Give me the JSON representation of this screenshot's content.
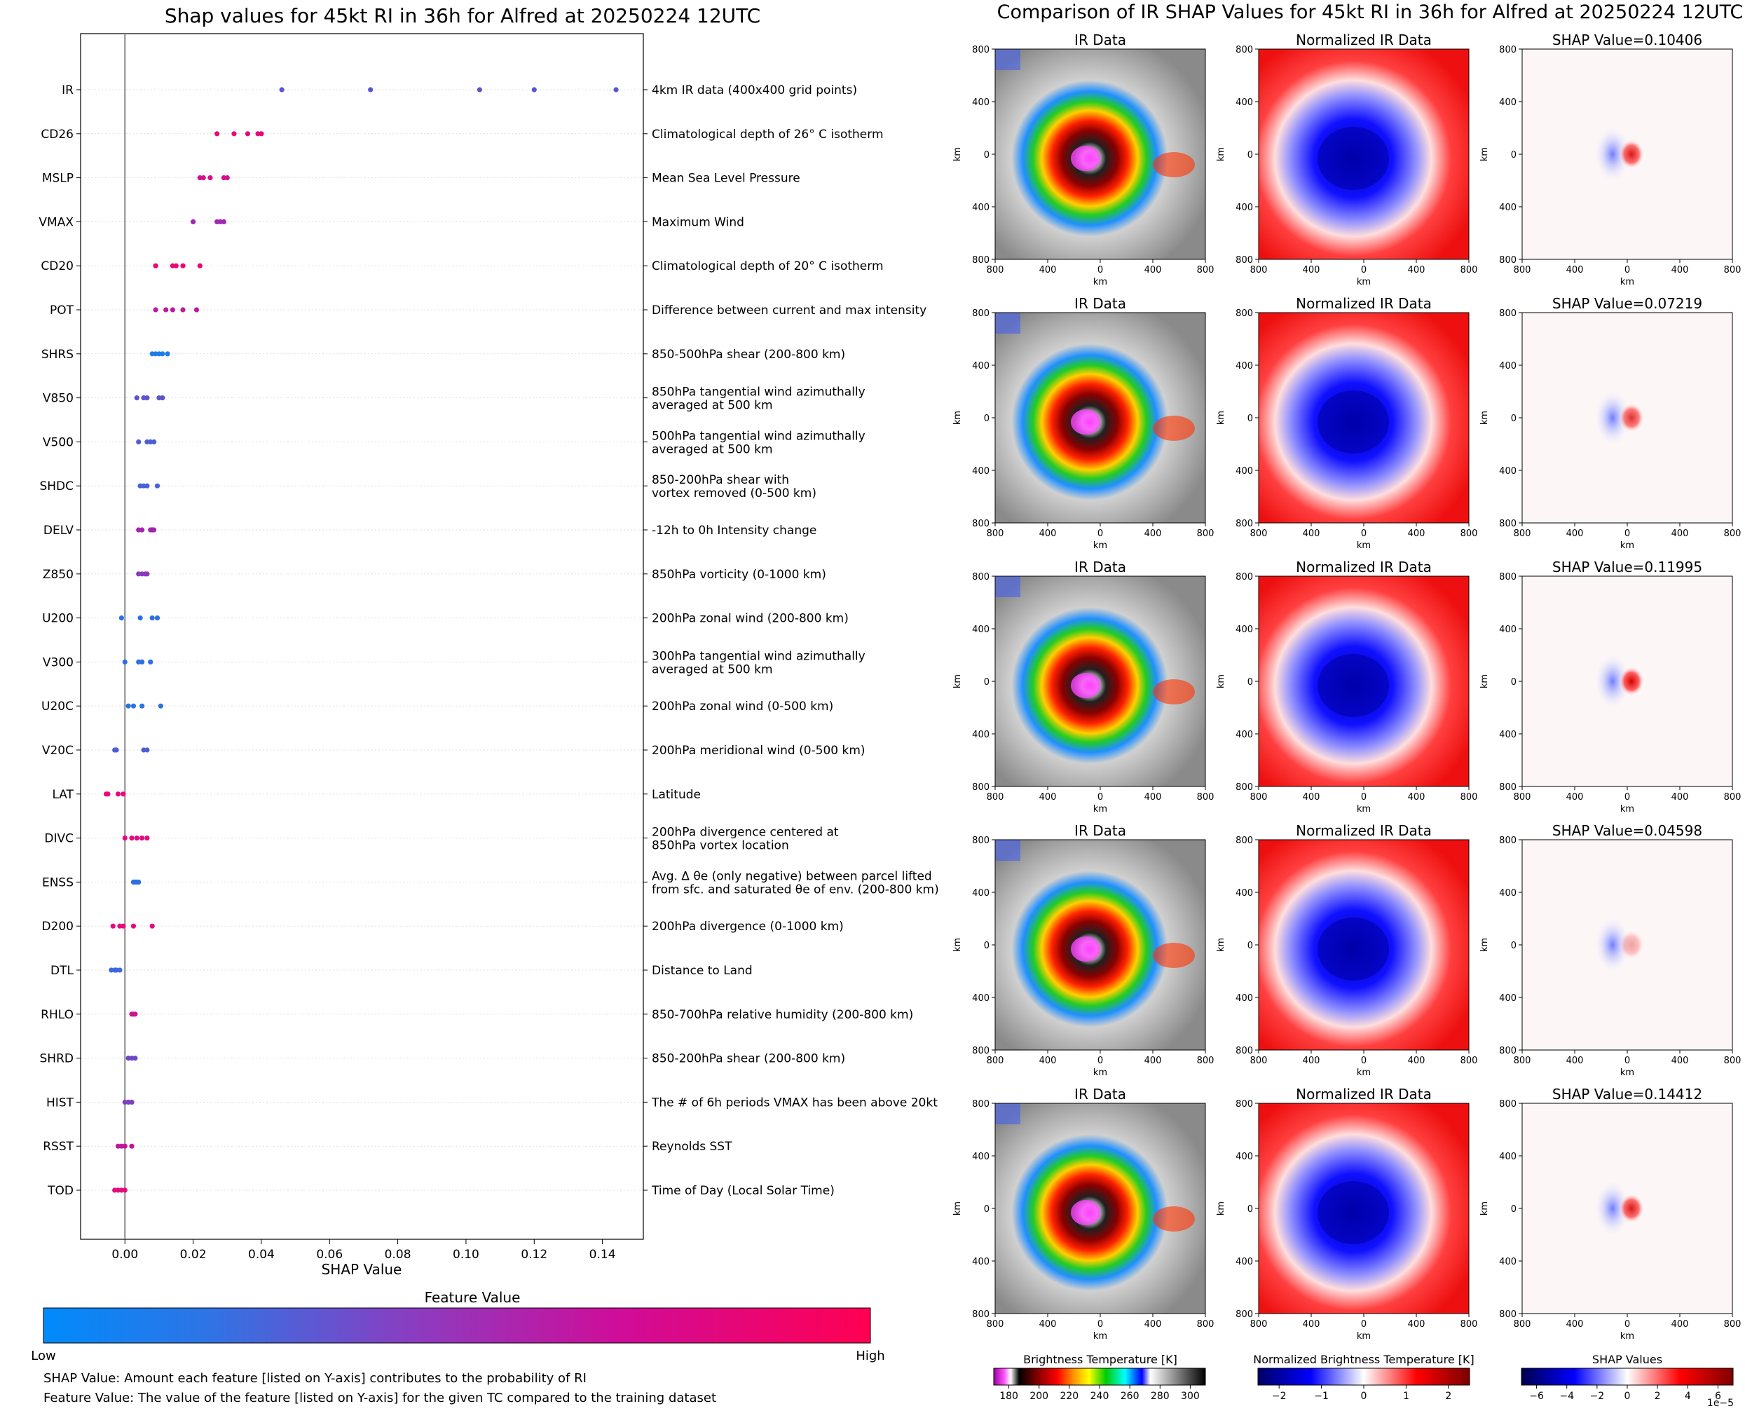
{
  "left": {
    "title": "Shap values for 45kt RI in 36h for Alfred at 20250224 12UTC",
    "xlabel": "SHAP Value",
    "xlim": [
      -0.013,
      0.152
    ],
    "xticks": [
      0.0,
      0.02,
      0.04,
      0.06,
      0.08,
      0.1,
      0.12,
      0.14
    ],
    "xtick_labels": [
      "0.00",
      "0.02",
      "0.04",
      "0.06",
      "0.08",
      "0.10",
      "0.12",
      "0.14"
    ],
    "colorbar_title": "Feature Value",
    "colorbar_low": "Low",
    "colorbar_high": "High",
    "note1": "SHAP Value: Amount each feature [listed on Y-axis] contributes to the probability of RI",
    "note2": "Feature Value: The value of the feature [listed on Y-axis] for the given TC compared to the training dataset"
  },
  "chart_data": {
    "type": "scatter",
    "title": "Shap values for 45kt RI in 36h for Alfred at 20250224 12UTC",
    "xlabel": "SHAP Value",
    "features": [
      {
        "name": "IR",
        "desc": [
          "4km IR data (400x400 grid points)"
        ],
        "color": "#5a55cc",
        "values": [
          0.046,
          0.072,
          0.104,
          0.12,
          0.144
        ]
      },
      {
        "name": "CD26",
        "desc": [
          "Climatological depth of 26° C isotherm"
        ],
        "color": "#e5097a",
        "values": [
          0.027,
          0.032,
          0.036,
          0.039,
          0.04
        ]
      },
      {
        "name": "MSLP",
        "desc": [
          "Mean Sea Level Pressure"
        ],
        "color": "#d4108e",
        "values": [
          0.022,
          0.023,
          0.025,
          0.029,
          0.03
        ]
      },
      {
        "name": "VMAX",
        "desc": [
          "Maximum Wind"
        ],
        "color": "#a028b0",
        "values": [
          0.02,
          0.027,
          0.028,
          0.029
        ]
      },
      {
        "name": "CD20",
        "desc": [
          "Climatological depth of 20° C isotherm"
        ],
        "color": "#ec0670",
        "values": [
          0.009,
          0.014,
          0.015,
          0.017,
          0.022
        ]
      },
      {
        "name": "POT",
        "desc": [
          "Difference between current and max intensity"
        ],
        "color": "#bb1a9e",
        "values": [
          0.009,
          0.012,
          0.014,
          0.017,
          0.021
        ]
      },
      {
        "name": "SHRS",
        "desc": [
          "850-500hPa shear (200-800 km)"
        ],
        "color": "#1e7ee6",
        "values": [
          0.008,
          0.009,
          0.01,
          0.011,
          0.0125
        ]
      },
      {
        "name": "V850",
        "desc": [
          "850hPa tangential wind azimuthally",
          "averaged at 500 km"
        ],
        "color": "#5c52cc",
        "values": [
          0.0035,
          0.0055,
          0.0065,
          0.01,
          0.011
        ]
      },
      {
        "name": "V500",
        "desc": [
          "500hPa tangential wind azimuthally",
          "averaged at 500 km"
        ],
        "color": "#4d5ed4",
        "values": [
          0.004,
          0.0065,
          0.0075,
          0.0085
        ]
      },
      {
        "name": "SHDC",
        "desc": [
          "850-200hPa shear with",
          "vortex removed (0-500 km)"
        ],
        "color": "#4a60d6",
        "values": [
          0.0045,
          0.0055,
          0.0065,
          0.0095
        ]
      },
      {
        "name": "DELV",
        "desc": [
          "-12h to 0h Intensity change"
        ],
        "color": "#a423ae",
        "values": [
          0.004,
          0.005,
          0.0075,
          0.008,
          0.0085
        ]
      },
      {
        "name": "Z850",
        "desc": [
          "850hPa vorticity (0-1000 km)"
        ],
        "color": "#8a38be",
        "values": [
          0.004,
          0.005,
          0.006,
          0.0065
        ]
      },
      {
        "name": "U200",
        "desc": [
          "200hPa zonal wind (200-800 km)"
        ],
        "color": "#2c70e0",
        "values": [
          -0.001,
          0.0045,
          0.008,
          0.0095
        ]
      },
      {
        "name": "V300",
        "desc": [
          "300hPa tangential wind azimuthally",
          "averaged at 500 km"
        ],
        "color": "#2f6fdf",
        "values": [
          0.0,
          0.004,
          0.005,
          0.0075
        ]
      },
      {
        "name": "U20C",
        "desc": [
          "200hPa zonal wind (0-500 km)"
        ],
        "color": "#2d72e0",
        "values": [
          0.001,
          0.0025,
          0.005,
          0.0105
        ]
      },
      {
        "name": "V20C",
        "desc": [
          "200hPa meridional wind (0-500 km)"
        ],
        "color": "#4d5ed4",
        "values": [
          -0.003,
          -0.0025,
          0.0055,
          0.0065
        ]
      },
      {
        "name": "LAT",
        "desc": [
          "Latitude"
        ],
        "color": "#e6097e",
        "values": [
          -0.0055,
          -0.005,
          -0.002,
          -0.0005
        ]
      },
      {
        "name": "DIVC",
        "desc": [
          "200hPa divergence centered at",
          "850hPa vortex location"
        ],
        "color": "#e40a80",
        "values": [
          0.0,
          0.002,
          0.0035,
          0.005,
          0.0065
        ]
      },
      {
        "name": "ENSS",
        "desc": [
          "Avg. Δ θe (only negative) between parcel lifted",
          "from sfc. and saturated θe of env. (200-800 km)"
        ],
        "color": "#2d71e0",
        "values": [
          0.0025,
          0.003,
          0.0035,
          0.004
        ]
      },
      {
        "name": "D200",
        "desc": [
          "200hPa divergence (0-1000 km)"
        ],
        "color": "#e60a7e",
        "values": [
          -0.0035,
          -0.0015,
          -0.0005,
          0.0025,
          0.008
        ]
      },
      {
        "name": "DTL",
        "desc": [
          "Distance to Land"
        ],
        "color": "#3b68da",
        "values": [
          -0.004,
          -0.003,
          -0.0025,
          -0.0015
        ]
      },
      {
        "name": "RHLO",
        "desc": [
          "850-700hPa relative humidity (200-800 km)"
        ],
        "color": "#cc128f",
        "values": [
          0.002,
          0.0025,
          0.003
        ]
      },
      {
        "name": "SHRD",
        "desc": [
          "850-200hPa shear (200-800 km)"
        ],
        "color": "#6e48c4",
        "values": [
          0.001,
          0.002,
          0.003
        ]
      },
      {
        "name": "HIST",
        "desc": [
          "The # of 6h periods VMAX has been above 20kt"
        ],
        "color": "#7a42c0",
        "values": [
          0.0,
          0.001,
          0.002
        ]
      },
      {
        "name": "RSST",
        "desc": [
          "Reynolds SST"
        ],
        "color": "#c0169a",
        "values": [
          -0.002,
          -0.001,
          0.0,
          0.002
        ]
      },
      {
        "name": "TOD",
        "desc": [
          "Time of Day (Local Solar Time)"
        ],
        "color": "#e80a7a",
        "values": [
          -0.003,
          -0.002,
          -0.001,
          0.0
        ]
      }
    ]
  },
  "right": {
    "title": "Comparison of IR SHAP Values for 45kt RI in 36h for Alfred at 20250224 12UTC",
    "col_titles": [
      "IR Data",
      "Normalized IR Data"
    ],
    "shap_titles": [
      "SHAP Value=0.10406",
      "SHAP Value=0.07219",
      "SHAP Value=0.11995",
      "SHAP Value=0.04598",
      "SHAP Value=0.14412"
    ],
    "axis_label": "km",
    "tick_labels": [
      "800",
      "400",
      "0",
      "400",
      "800"
    ],
    "cb1_title": "Brightness Temperature [K]",
    "cb1_ticks": [
      "180",
      "200",
      "220",
      "240",
      "260",
      "280",
      "300"
    ],
    "cb2_title": "Normalized Brightness Temperature [K]",
    "cb2_ticks": [
      "−2",
      "−1",
      "0",
      "1",
      "2"
    ],
    "cb3_title": "SHAP Values",
    "cb3_ticks": [
      "−6",
      "−4",
      "−2",
      "0",
      "2",
      "4",
      "6"
    ],
    "cb3_offset": "1e−5"
  }
}
